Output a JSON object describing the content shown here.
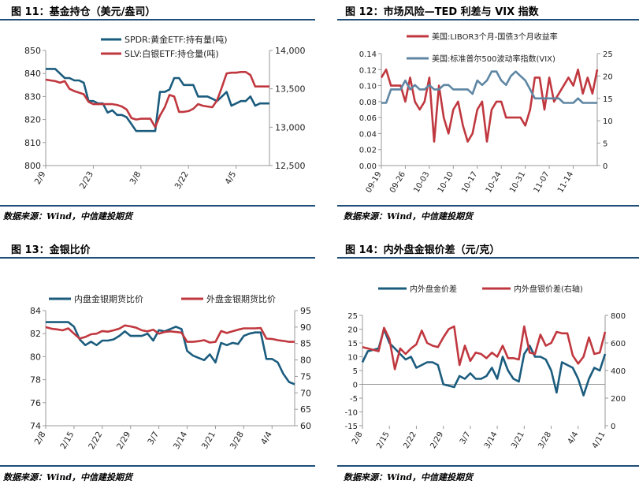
{
  "panels": [
    {
      "title": "图 11：基金持仓（美元/盎司）",
      "source": "数据来源：Wind，中信建投期货"
    },
    {
      "title": "图 12：市场风险—TED 利差与 VIX 指数",
      "source": "数据来源：Wind，中信建投期货"
    },
    {
      "title": "图 13：金银比价",
      "source": "数据来源：Wind，中信建投期货"
    },
    {
      "title": "图 14：内外盘金银价差（元/克）",
      "source": "数据来源：Wind，中信建投期货"
    }
  ],
  "colors": {
    "blue": "#1b5c7e",
    "red": "#c0383f",
    "steel": "#5e86a3",
    "rule": "#1f4e79",
    "grid": "#e3e3e3",
    "axis": "#999999"
  },
  "chart_data": [
    {
      "type": "line",
      "x": [
        "2/9",
        "2/10",
        "2/11",
        "2/12",
        "2/15",
        "2/16",
        "2/17",
        "2/18",
        "2/19",
        "2/22",
        "2/23",
        "2/24",
        "2/25",
        "2/26",
        "2/29",
        "3/1",
        "3/2",
        "3/3",
        "3/4",
        "3/7",
        "3/8",
        "3/9",
        "3/10",
        "3/11",
        "3/14",
        "3/15",
        "3/16",
        "3/17",
        "3/18",
        "3/21",
        "3/22",
        "3/23",
        "3/24",
        "3/25",
        "3/28",
        "3/29",
        "3/30",
        "3/31",
        "4/1",
        "4/4",
        "4/5",
        "4/6",
        "4/7",
        "4/8",
        "4/11",
        "4/12",
        "4/13",
        "4/14"
      ],
      "xticks": [
        "2/9",
        "2/23",
        "3/8",
        "3/22",
        "4/5"
      ],
      "ylim": [
        800,
        850
      ],
      "yticks": [
        800,
        810,
        820,
        830,
        840,
        850
      ],
      "y2lim": [
        12500,
        14000
      ],
      "y2ticks": [
        12500,
        13000,
        13500,
        14000
      ],
      "y2tick_labels": [
        "12,500",
        "13,000",
        "13,500",
        "14,000"
      ],
      "legend_position": "top-right",
      "series": [
        {
          "name": "SPDR:黄金ETF:持有量(吨)",
          "axis": "left",
          "color": "#1b5c7e",
          "values": [
            842,
            842,
            842,
            840,
            838,
            838,
            837,
            837,
            836,
            828,
            828,
            827,
            827,
            823,
            824,
            822,
            822,
            821,
            818,
            815,
            815,
            815,
            815,
            815,
            832,
            832,
            833,
            838,
            838,
            835,
            835,
            835,
            830,
            830,
            830,
            829,
            828,
            830,
            832,
            826,
            827,
            828,
            828,
            830,
            826,
            827,
            827,
            827
          ]
        },
        {
          "name": "SLV:白银ETF:持仓量(吨)",
          "axis": "right",
          "color": "#c0383f",
          "values": [
            13620,
            13610,
            13600,
            13580,
            13600,
            13500,
            13470,
            13450,
            13430,
            13330,
            13300,
            13300,
            13300,
            13300,
            13300,
            13290,
            13270,
            13230,
            13120,
            13100,
            13110,
            13110,
            13110,
            13000,
            13150,
            13260,
            13420,
            13400,
            13200,
            13200,
            13210,
            13240,
            13300,
            13280,
            13270,
            13260,
            13350,
            13520,
            13700,
            13710,
            13710,
            13720,
            13720,
            13680,
            13530,
            13530,
            13530,
            13530
          ]
        }
      ]
    },
    {
      "type": "line",
      "x": [
        "09-19",
        "09-20",
        "09-21",
        "09-22",
        "09-23",
        "09-26",
        "09-27",
        "09-28",
        "09-29",
        "09-30",
        "10-03",
        "10-04",
        "10-05",
        "10-06",
        "10-07",
        "10-10",
        "10-11",
        "10-12",
        "10-13",
        "10-14",
        "10-17",
        "10-18",
        "10-19",
        "10-20",
        "10-21",
        "10-24",
        "10-25",
        "10-26",
        "10-27",
        "10-28",
        "10-31",
        "11-01",
        "11-02",
        "11-03",
        "11-04",
        "11-07",
        "11-08",
        "11-09",
        "11-10",
        "11-11",
        "11-14",
        "11-15",
        "11-16",
        "11-17",
        "11-18",
        "11-21"
      ],
      "xticks": [
        "09-19",
        "09-26",
        "10-03",
        "10-10",
        "10-17",
        "10-24",
        "10-31",
        "11-07",
        "11-14"
      ],
      "ylim": [
        0,
        0.14
      ],
      "yticks": [
        0,
        0.02,
        0.04,
        0.06,
        0.08,
        0.1,
        0.12,
        0.14
      ],
      "ytick_labels": [
        "0.00",
        "0.02",
        "0.04",
        "0.06",
        "0.08",
        "0.10",
        "0.12",
        "0.14"
      ],
      "y2lim": [
        0,
        25
      ],
      "y2ticks": [
        0,
        5,
        10,
        15,
        20,
        25
      ],
      "legend_position": "top-left",
      "series": [
        {
          "name": "美国:LIBOR3个月-国债3个月收益率",
          "axis": "left",
          "color": "#c0383f",
          "values": [
            0.11,
            0.12,
            0.1,
            0.1,
            0.1,
            0.08,
            0.11,
            0.08,
            0.07,
            0.08,
            0.11,
            0.03,
            0.1,
            0.06,
            0.04,
            0.07,
            0.08,
            0.05,
            0.03,
            0.04,
            0.07,
            0.08,
            0.03,
            0.07,
            0.08,
            0.08,
            0.06,
            0.06,
            0.06,
            0.06,
            0.05,
            0.07,
            0.11,
            0.11,
            0.07,
            0.11,
            0.08,
            0.09,
            0.1,
            0.11,
            0.1,
            0.12,
            0.09,
            0.11,
            0.09,
            0.12
          ]
        },
        {
          "name": "美国:标准普尔500波动率指数(VIX)",
          "axis": "right",
          "color": "#5e86a3",
          "values": [
            14,
            14,
            17,
            17,
            17,
            19,
            17,
            18,
            17,
            17,
            18,
            17,
            17,
            18,
            18,
            17,
            17,
            17,
            17,
            16,
            19,
            18,
            19,
            21,
            21,
            19,
            18,
            20,
            21,
            20,
            19,
            17,
            15,
            15,
            15,
            15,
            15,
            15,
            14,
            14,
            14,
            15,
            14,
            14,
            14,
            14
          ]
        }
      ]
    },
    {
      "type": "line",
      "x": [
        "2/8",
        "2/9",
        "2/10",
        "2/11",
        "2/12",
        "2/15",
        "2/16",
        "2/17",
        "2/18",
        "2/19",
        "2/22",
        "2/23",
        "2/24",
        "2/25",
        "2/26",
        "2/29",
        "3/1",
        "3/2",
        "3/3",
        "3/4",
        "3/7",
        "3/8",
        "3/9",
        "3/10",
        "3/11",
        "3/14",
        "3/15",
        "3/16",
        "3/17",
        "3/18",
        "3/21",
        "3/22",
        "3/23",
        "3/24",
        "3/25",
        "3/28",
        "3/29",
        "3/30",
        "3/31",
        "4/1",
        "4/4",
        "4/5",
        "4/6",
        "4/7",
        "4/8"
      ],
      "xticks": [
        "2/8",
        "2/15",
        "2/22",
        "2/29",
        "3/7",
        "3/14",
        "3/21",
        "3/28",
        "4/4"
      ],
      "ylim": [
        74,
        84
      ],
      "yticks": [
        74,
        76,
        78,
        80,
        82,
        84
      ],
      "y2lim": [
        60,
        95
      ],
      "y2ticks": [
        60,
        65,
        70,
        75,
        80,
        85,
        90,
        95
      ],
      "legend_position": "top",
      "series": [
        {
          "name": "内盘金银期货比价",
          "axis": "left",
          "color": "#1b5c7e",
          "values": [
            83,
            83,
            83,
            83,
            83,
            82.6,
            81.5,
            81,
            81.3,
            81,
            81.4,
            81.4,
            81.5,
            81.8,
            82.2,
            81.8,
            81.8,
            81.8,
            82.0,
            81.4,
            82.3,
            82.2,
            82.4,
            82.6,
            82.4,
            80.5,
            80.1,
            79.9,
            79.7,
            80.2,
            79.5,
            81.2,
            81.0,
            81.2,
            81.1,
            81.8,
            82.0,
            82.1,
            82.1,
            79.8,
            79.8,
            79.5,
            78.5,
            77.8,
            77.6
          ]
        },
        {
          "name": "外盘金银期货比价",
          "axis": "right",
          "color": "#c0383f",
          "values": [
            90,
            89.5,
            89.3,
            89,
            89.6,
            88,
            86.5,
            87,
            87.8,
            88,
            88.8,
            88.6,
            89,
            89.5,
            90.5,
            90.2,
            89.8,
            89,
            88.7,
            89.2,
            88,
            88.5,
            88.7,
            88.5,
            88.3,
            85.5,
            85.5,
            85.7,
            86,
            85.3,
            85.5,
            88.8,
            88.2,
            88.7,
            89.2,
            89.6,
            89.6,
            89.6,
            89.7,
            86.5,
            86.4,
            86,
            85.8,
            85.5,
            85.5
          ]
        }
      ]
    },
    {
      "type": "line",
      "x": [
        "2/8",
        "2/9",
        "2/10",
        "2/11",
        "2/12",
        "2/15",
        "2/16",
        "2/17",
        "2/18",
        "2/19",
        "2/22",
        "2/23",
        "2/24",
        "2/25",
        "2/26",
        "2/29",
        "3/1",
        "3/2",
        "3/3",
        "3/4",
        "3/7",
        "3/8",
        "3/9",
        "3/10",
        "3/11",
        "3/14",
        "3/15",
        "3/16",
        "3/17",
        "3/18",
        "3/21",
        "3/22",
        "3/23",
        "3/24",
        "3/25",
        "3/28",
        "3/29",
        "3/30",
        "3/31",
        "4/1",
        "4/4",
        "4/5",
        "4/6",
        "4/7",
        "4/8",
        "4/11"
      ],
      "xticks": [
        "2/8",
        "2/15",
        "2/22",
        "2/29",
        "3/7",
        "3/14",
        "3/21",
        "3/28",
        "4/4",
        "4/11"
      ],
      "ylim": [
        -15,
        25
      ],
      "yticks": [
        -15,
        -10,
        -5,
        0,
        5,
        10,
        15,
        20,
        25
      ],
      "y2lim": [
        0,
        800
      ],
      "y2ticks": [
        0,
        200,
        400,
        600,
        800
      ],
      "legend_position": "top",
      "series": [
        {
          "name": "内外盘金价差",
          "axis": "left",
          "color": "#1b5c7e",
          "values": [
            8,
            12,
            12.5,
            13,
            20,
            15,
            13,
            11,
            9,
            10,
            6,
            7,
            8,
            8,
            7,
            0,
            -0.5,
            -1,
            3,
            2,
            4,
            2,
            2,
            3,
            6,
            2,
            10,
            5,
            2,
            1,
            11,
            14,
            10,
            10,
            9,
            5,
            -3,
            8,
            7,
            6,
            2,
            -4,
            2,
            6,
            5,
            11
          ]
        },
        {
          "name": "内外盘银价差(右轴)",
          "axis": "right",
          "color": "#c0383f",
          "values": [
            570,
            560,
            550,
            540,
            710,
            630,
            410,
            560,
            520,
            560,
            590,
            690,
            600,
            580,
            570,
            640,
            700,
            720,
            440,
            580,
            470,
            530,
            520,
            490,
            530,
            500,
            580,
            490,
            490,
            480,
            720,
            530,
            520,
            660,
            580,
            600,
            680,
            670,
            670,
            510,
            450,
            500,
            640,
            520,
            530,
            680
          ]
        }
      ]
    }
  ]
}
